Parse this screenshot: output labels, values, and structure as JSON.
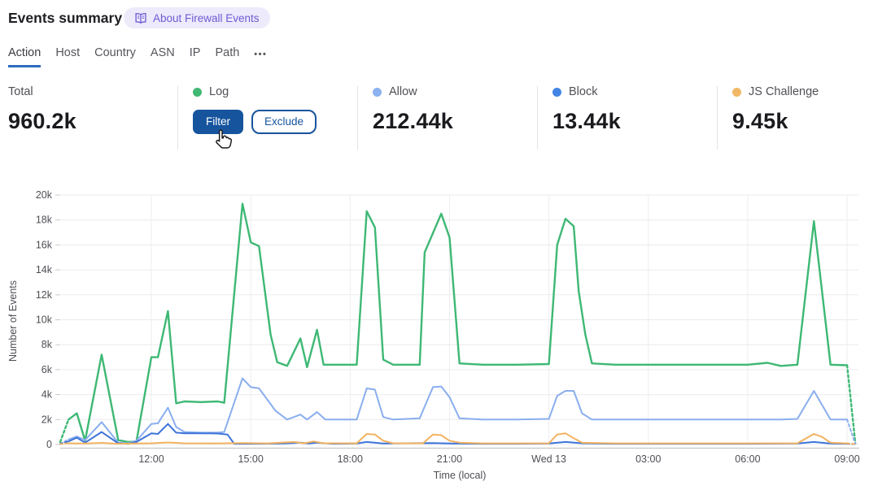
{
  "header": {
    "title": "Events summary",
    "badge": {
      "label": "About Firewall Events",
      "text_color": "#6e5bd3",
      "bg_color": "#edeafb"
    }
  },
  "tabs": {
    "items": [
      {
        "label": "Action",
        "active": true
      },
      {
        "label": "Host",
        "active": false
      },
      {
        "label": "Country",
        "active": false
      },
      {
        "label": "ASN",
        "active": false
      },
      {
        "label": "IP",
        "active": false
      },
      {
        "label": "Path",
        "active": false
      }
    ],
    "more_label": "•••",
    "active_underline_color": "#2d6cbf"
  },
  "stats": {
    "total": {
      "label": "Total",
      "value": "960.2k"
    },
    "actions": [
      {
        "label": "Log",
        "color": "#41b874",
        "buttons": {
          "filter": "Filter",
          "exclude": "Exclude"
        }
      },
      {
        "label": "Allow",
        "color": "#8cb2ef",
        "value": "212.44k"
      },
      {
        "label": "Block",
        "color": "#4285e4",
        "value": "13.44k"
      },
      {
        "label": "JS Challenge",
        "color": "#f0b866",
        "value": "9.45k"
      }
    ],
    "button_accent_color": "#17549e"
  },
  "chart_data": {
    "type": "line",
    "title": "",
    "xlabel": "Time (local)",
    "ylabel": "Number of Events",
    "ylim": [
      0,
      20000
    ],
    "grid": true,
    "legend_position": "none (stat cards above act as legend)",
    "x_ticks": [
      {
        "t": 12,
        "label": "12:00"
      },
      {
        "t": 15,
        "label": "15:00"
      },
      {
        "t": 18,
        "label": "18:00"
      },
      {
        "t": 21,
        "label": "21:00"
      },
      {
        "t": 24,
        "label": "Wed 13"
      },
      {
        "t": 27,
        "label": "03:00"
      },
      {
        "t": 30,
        "label": "06:00"
      },
      {
        "t": 33,
        "label": "09:00"
      }
    ],
    "y_ticks": [
      {
        "v": 0,
        "label": "0"
      },
      {
        "v": 2000,
        "label": "2k"
      },
      {
        "v": 4000,
        "label": "4k"
      },
      {
        "v": 6000,
        "label": "6k"
      },
      {
        "v": 8000,
        "label": "8k"
      },
      {
        "v": 10000,
        "label": "10k"
      },
      {
        "v": 12000,
        "label": "12k"
      },
      {
        "v": 14000,
        "label": "14k"
      },
      {
        "v": 16000,
        "label": "16k"
      },
      {
        "v": 18000,
        "label": "18k"
      },
      {
        "v": 20000,
        "label": "20k"
      }
    ],
    "x_unit": "hours from midnight Tue 12 (24 = Wed 13 00:00); first/last segments dashed (partial buckets)",
    "series": [
      {
        "name": "Log",
        "color": "#3eb874",
        "width": 2.4,
        "points": [
          [
            9.25,
            200
          ],
          [
            9.5,
            2000
          ],
          [
            9.75,
            2500
          ],
          [
            10.0,
            300
          ],
          [
            10.5,
            7200
          ],
          [
            11.0,
            350
          ],
          [
            11.3,
            200
          ],
          [
            11.55,
            250
          ],
          [
            12.0,
            7000
          ],
          [
            12.2,
            7000
          ],
          [
            12.5,
            10700
          ],
          [
            12.75,
            3300
          ],
          [
            13.0,
            3450
          ],
          [
            13.5,
            3400
          ],
          [
            14.0,
            3450
          ],
          [
            14.2,
            3350
          ],
          [
            14.75,
            19300
          ],
          [
            15.0,
            16200
          ],
          [
            15.25,
            15900
          ],
          [
            15.6,
            8800
          ],
          [
            15.8,
            6600
          ],
          [
            16.1,
            6300
          ],
          [
            16.5,
            8500
          ],
          [
            16.7,
            6200
          ],
          [
            17.0,
            9200
          ],
          [
            17.2,
            6400
          ],
          [
            17.75,
            6400
          ],
          [
            18.2,
            6400
          ],
          [
            18.5,
            18700
          ],
          [
            18.75,
            17400
          ],
          [
            19.0,
            6800
          ],
          [
            19.3,
            6400
          ],
          [
            20.1,
            6400
          ],
          [
            20.25,
            15400
          ],
          [
            20.75,
            18500
          ],
          [
            21.0,
            16600
          ],
          [
            21.3,
            6500
          ],
          [
            22.0,
            6400
          ],
          [
            23.0,
            6400
          ],
          [
            24.0,
            6450
          ],
          [
            24.25,
            16000
          ],
          [
            24.5,
            18100
          ],
          [
            24.75,
            17500
          ],
          [
            24.9,
            12300
          ],
          [
            25.1,
            8800
          ],
          [
            25.3,
            6500
          ],
          [
            26.0,
            6400
          ],
          [
            27.0,
            6400
          ],
          [
            28.0,
            6400
          ],
          [
            29.0,
            6400
          ],
          [
            30.0,
            6400
          ],
          [
            30.6,
            6550
          ],
          [
            31.0,
            6300
          ],
          [
            31.5,
            6400
          ],
          [
            32.0,
            17900
          ],
          [
            32.5,
            6400
          ],
          [
            33.0,
            6350
          ],
          [
            33.25,
            100
          ]
        ]
      },
      {
        "name": "Allow",
        "color": "#8aaeee",
        "width": 2,
        "points": [
          [
            9.25,
            50
          ],
          [
            9.5,
            400
          ],
          [
            9.75,
            650
          ],
          [
            10.0,
            350
          ],
          [
            10.5,
            1800
          ],
          [
            11.0,
            150
          ],
          [
            11.3,
            100
          ],
          [
            11.55,
            300
          ],
          [
            12.0,
            1650
          ],
          [
            12.2,
            1700
          ],
          [
            12.5,
            2950
          ],
          [
            12.75,
            1400
          ],
          [
            13.0,
            1000
          ],
          [
            13.5,
            950
          ],
          [
            14.0,
            950
          ],
          [
            14.2,
            1000
          ],
          [
            14.75,
            5300
          ],
          [
            15.0,
            4600
          ],
          [
            15.25,
            4500
          ],
          [
            15.75,
            2700
          ],
          [
            16.1,
            2000
          ],
          [
            16.5,
            2400
          ],
          [
            16.7,
            2000
          ],
          [
            17.0,
            2600
          ],
          [
            17.25,
            2000
          ],
          [
            18.2,
            2000
          ],
          [
            18.5,
            4500
          ],
          [
            18.75,
            4400
          ],
          [
            19.0,
            2200
          ],
          [
            19.3,
            2000
          ],
          [
            20.1,
            2100
          ],
          [
            20.5,
            4600
          ],
          [
            20.75,
            4650
          ],
          [
            21.0,
            3800
          ],
          [
            21.3,
            2100
          ],
          [
            22.0,
            2000
          ],
          [
            23.0,
            2000
          ],
          [
            24.0,
            2050
          ],
          [
            24.25,
            3900
          ],
          [
            24.5,
            4300
          ],
          [
            24.75,
            4300
          ],
          [
            25.0,
            2500
          ],
          [
            25.3,
            2000
          ],
          [
            26.0,
            2000
          ],
          [
            27.0,
            2000
          ],
          [
            28.0,
            2000
          ],
          [
            29.0,
            2000
          ],
          [
            30.0,
            2000
          ],
          [
            31.0,
            2000
          ],
          [
            31.5,
            2050
          ],
          [
            32.0,
            4300
          ],
          [
            32.5,
            2000
          ],
          [
            33.0,
            2000
          ],
          [
            33.25,
            50
          ]
        ]
      },
      {
        "name": "Block",
        "color": "#3d74da",
        "width": 2,
        "points": [
          [
            9.25,
            50
          ],
          [
            9.5,
            250
          ],
          [
            9.75,
            550
          ],
          [
            10.0,
            150
          ],
          [
            10.5,
            1000
          ],
          [
            11.0,
            100
          ],
          [
            11.3,
            50
          ],
          [
            11.55,
            200
          ],
          [
            12.0,
            900
          ],
          [
            12.2,
            850
          ],
          [
            12.5,
            1650
          ],
          [
            12.75,
            950
          ],
          [
            13.0,
            900
          ],
          [
            13.5,
            900
          ],
          [
            14.0,
            880
          ],
          [
            14.3,
            800
          ],
          [
            14.5,
            60
          ],
          [
            15.0,
            60
          ],
          [
            16.0,
            80
          ],
          [
            16.5,
            150
          ],
          [
            16.75,
            80
          ],
          [
            17.0,
            150
          ],
          [
            17.5,
            60
          ],
          [
            18.2,
            80
          ],
          [
            18.5,
            200
          ],
          [
            19.0,
            80
          ],
          [
            20.5,
            120
          ],
          [
            21.0,
            80
          ],
          [
            22.0,
            60
          ],
          [
            23.0,
            60
          ],
          [
            24.0,
            80
          ],
          [
            24.5,
            200
          ],
          [
            25.0,
            100
          ],
          [
            26.0,
            60
          ],
          [
            27.0,
            60
          ],
          [
            28.0,
            60
          ],
          [
            29.0,
            60
          ],
          [
            30.0,
            60
          ],
          [
            31.5,
            80
          ],
          [
            32.0,
            200
          ],
          [
            32.5,
            80
          ],
          [
            33.0,
            60
          ],
          [
            33.25,
            30
          ]
        ]
      },
      {
        "name": "JS Challenge",
        "color": "#f2b360",
        "width": 2,
        "points": [
          [
            9.25,
            30
          ],
          [
            9.5,
            100
          ],
          [
            10.0,
            80
          ],
          [
            10.5,
            130
          ],
          [
            11.0,
            60
          ],
          [
            11.55,
            80
          ],
          [
            12.0,
            100
          ],
          [
            12.5,
            160
          ],
          [
            13.0,
            100
          ],
          [
            14.0,
            90
          ],
          [
            14.75,
            110
          ],
          [
            15.5,
            90
          ],
          [
            16.3,
            200
          ],
          [
            16.6,
            100
          ],
          [
            16.9,
            250
          ],
          [
            17.2,
            100
          ],
          [
            18.2,
            100
          ],
          [
            18.5,
            850
          ],
          [
            18.75,
            800
          ],
          [
            19.0,
            300
          ],
          [
            19.3,
            100
          ],
          [
            20.2,
            100
          ],
          [
            20.5,
            800
          ],
          [
            20.75,
            750
          ],
          [
            21.0,
            300
          ],
          [
            21.3,
            150
          ],
          [
            22.0,
            90
          ],
          [
            23.0,
            90
          ],
          [
            24.0,
            100
          ],
          [
            24.25,
            800
          ],
          [
            24.5,
            900
          ],
          [
            24.75,
            500
          ],
          [
            25.0,
            150
          ],
          [
            26.0,
            90
          ],
          [
            27.0,
            90
          ],
          [
            28.0,
            90
          ],
          [
            29.0,
            90
          ],
          [
            30.0,
            90
          ],
          [
            31.5,
            100
          ],
          [
            32.0,
            850
          ],
          [
            32.25,
            600
          ],
          [
            32.5,
            150
          ],
          [
            33.0,
            90
          ],
          [
            33.25,
            30
          ]
        ]
      }
    ]
  }
}
